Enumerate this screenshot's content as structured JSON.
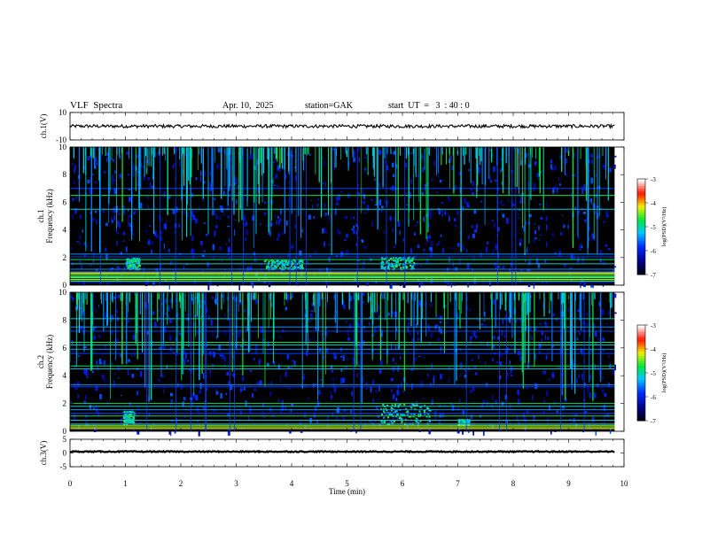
{
  "header": {
    "title": "VLF  Spectra",
    "date": "Apr. 10,  2025",
    "station": "station=GAK",
    "start": "start  UT  =   3  : 40 : 0"
  },
  "chart_data": [
    {
      "type": "line",
      "name": "ch1-waveform",
      "ylabel": "ch.1(V)",
      "ylim": [
        -10,
        10
      ],
      "ytick_labels": [
        "10",
        "-10"
      ],
      "baseline_value": 0,
      "noise_amplitude": 1.2,
      "xlim": [
        0,
        10
      ]
    },
    {
      "type": "heatmap",
      "name": "ch1-spectrogram",
      "ylabel_top": "ch.1",
      "ylabel": "Frequency  (kHz)",
      "ylim": [
        0,
        10
      ],
      "ytick_labels": [
        "0",
        "2",
        "4",
        "6",
        "8",
        "10"
      ],
      "data_end_min": 9.83,
      "colorbar": {
        "label": "log(PSD)(V²/Hz)",
        "range": [
          -7,
          -3
        ],
        "tick_labels": [
          "-3",
          "-4",
          "-5",
          "-6",
          "-7"
        ]
      },
      "horizontal_lines_khz": [
        0.2,
        0.4,
        0.6,
        0.85,
        1.0,
        1.15,
        1.55,
        1.85,
        2.05,
        2.25,
        5.5,
        6.5,
        7.0
      ],
      "bright_band_khz": [
        0.3,
        0.9
      ],
      "activity_patches": [
        [
          1.0,
          1.25,
          1.2,
          2.0
        ],
        [
          3.5,
          4.2,
          1.2,
          1.9
        ],
        [
          5.6,
          6.2,
          1.2,
          2.1
        ]
      ]
    },
    {
      "type": "heatmap",
      "name": "ch2-spectrogram",
      "ylabel_top": "ch.2",
      "ylabel": "Frequency  (kHz)",
      "ylim": [
        0,
        10
      ],
      "ytick_labels": [
        "0",
        "2",
        "4",
        "6",
        "8",
        "10"
      ],
      "data_end_min": 9.83,
      "colorbar": {
        "label": "log(PSD)(V²/Hz)",
        "range": [
          -7,
          -3
        ],
        "tick_labels": [
          "-3",
          "-4",
          "-5",
          "-6",
          "-7"
        ]
      },
      "horizontal_lines_khz": [
        0.3,
        0.55,
        0.8,
        1.1,
        1.3,
        1.55,
        1.8,
        2.0,
        3.2,
        3.35,
        4.5,
        4.7,
        5.6,
        5.9,
        6.2,
        6.4,
        7.2,
        7.5,
        8.1
      ],
      "bright_band_khz": [
        0.2,
        0.5
      ],
      "activity_patches": [
        [
          0.95,
          1.15,
          0.6,
          1.5
        ],
        [
          5.6,
          6.5,
          0.6,
          2.0
        ],
        [
          7.0,
          7.2,
          0.5,
          0.9
        ]
      ]
    },
    {
      "type": "line",
      "name": "ch3-waveform",
      "ylabel": "ch.3(V)",
      "ylim": [
        -5,
        5
      ],
      "ytick_labels": [
        "5",
        "0",
        "-5"
      ],
      "baseline_value": 0.5,
      "noise_amplitude": 0.2,
      "xlim": [
        0,
        10
      ],
      "xlabel": "Time  (min)",
      "xtick_labels": [
        "0",
        "1",
        "2",
        "3",
        "4",
        "5",
        "6",
        "7",
        "8",
        "9",
        "10"
      ]
    }
  ]
}
